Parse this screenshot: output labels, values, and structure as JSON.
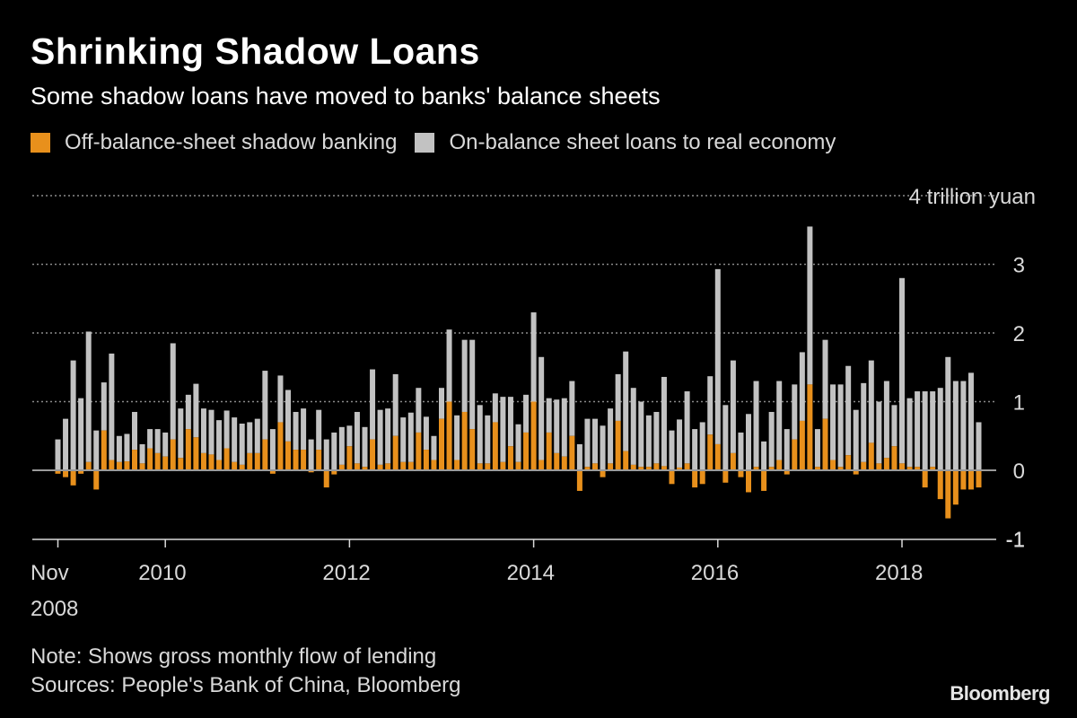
{
  "chart_data": {
    "type": "bar",
    "stacked": true,
    "title": "Shrinking Shadow Loans",
    "subtitle": "Some shadow loans have moved to banks' balance sheets",
    "y_unit_label": "4 trillion yuan",
    "ylim": [
      -1,
      4
    ],
    "y_ticks": [
      -1,
      0,
      1,
      2,
      3,
      4
    ],
    "y_tick_labels": [
      "-1",
      "0",
      "1",
      "2",
      "3"
    ],
    "x_tick_labels": [
      {
        "label": "Nov",
        "sub": "2008",
        "index": 0
      },
      {
        "label": "2010",
        "index": 14
      },
      {
        "label": "2012",
        "index": 38
      },
      {
        "label": "2014",
        "index": 62
      },
      {
        "label": "2016",
        "index": 86
      },
      {
        "label": "2018",
        "index": 110
      }
    ],
    "grid": "horizontal dotted",
    "legend_position": "top-left",
    "colors": {
      "off": "#e8901c",
      "on": "#c2c2c2",
      "grid": "#8a8a8a",
      "zero": "#9a9a9a"
    },
    "series": [
      {
        "name": "Off-balance-sheet shadow banking",
        "values": [
          -0.05,
          -0.1,
          -0.22,
          -0.05,
          0.12,
          -0.28,
          0.58,
          0.15,
          0.12,
          0.13,
          0.3,
          0.1,
          0.32,
          0.25,
          0.2,
          0.45,
          0.18,
          0.6,
          0.48,
          0.25,
          0.23,
          0.15,
          0.32,
          0.12,
          0.08,
          0.25,
          0.25,
          0.45,
          -0.05,
          0.7,
          0.42,
          0.3,
          0.3,
          -0.03,
          0.3,
          -0.25,
          -0.06,
          0.08,
          0.35,
          0.1,
          0.05,
          0.45,
          0.08,
          0.1,
          0.5,
          0.12,
          0.12,
          0.55,
          0.3,
          0.15,
          0.75,
          1.0,
          0.15,
          0.85,
          0.6,
          0.1,
          0.1,
          0.7,
          0.12,
          0.35,
          0.12,
          0.55,
          1.0,
          0.15,
          0.55,
          0.25,
          0.2,
          0.5,
          -0.3,
          0.05,
          0.1,
          -0.1,
          0.1,
          0.72,
          0.28,
          0.08,
          0.05,
          0.05,
          0.1,
          0.06,
          -0.2,
          0.04,
          0.1,
          -0.25,
          -0.2,
          0.52,
          0.38,
          -0.18,
          0.25,
          -0.1,
          -0.32,
          0.05,
          -0.3,
          0.05,
          0.15,
          -0.06,
          0.45,
          0.72,
          1.25,
          0.05,
          0.75,
          0.15,
          0.05,
          0.22,
          -0.06,
          0.12,
          0.4,
          0.1,
          0.18,
          0.35,
          0.1,
          0.05,
          0.05,
          -0.25,
          0.05,
          -0.42,
          -0.7,
          -0.5,
          -0.28,
          -0.28,
          -0.25
        ]
      },
      {
        "name": "On-balance sheet loans to real economy",
        "values": [
          0.45,
          0.75,
          1.6,
          1.05,
          1.9,
          0.58,
          0.7,
          1.55,
          0.38,
          0.4,
          0.55,
          0.28,
          0.28,
          0.35,
          0.35,
          1.4,
          0.72,
          0.5,
          0.78,
          0.65,
          0.65,
          0.58,
          0.55,
          0.65,
          0.6,
          0.45,
          0.5,
          1.0,
          0.6,
          0.68,
          0.75,
          0.55,
          0.6,
          0.45,
          0.58,
          0.45,
          0.55,
          0.55,
          0.3,
          0.75,
          0.58,
          1.02,
          0.8,
          0.8,
          0.9,
          0.65,
          0.72,
          0.65,
          0.48,
          0.35,
          0.45,
          1.05,
          0.65,
          1.05,
          1.3,
          0.85,
          0.7,
          0.42,
          0.95,
          0.72,
          0.55,
          0.55,
          1.3,
          1.5,
          0.5,
          0.78,
          0.85,
          0.8,
          0.38,
          0.7,
          0.65,
          0.65,
          0.8,
          0.68,
          1.45,
          1.12,
          0.95,
          0.75,
          0.75,
          1.3,
          0.58,
          0.7,
          1.05,
          0.6,
          0.7,
          0.85,
          2.55,
          0.95,
          1.35,
          0.55,
          0.82,
          1.25,
          0.42,
          0.8,
          1.15,
          0.6,
          0.8,
          1.0,
          2.3,
          0.55,
          1.15,
          1.1,
          1.2,
          1.3,
          0.88,
          1.15,
          1.2,
          0.9,
          1.12,
          0.6,
          2.7,
          1.0,
          1.1,
          1.15,
          1.1,
          1.2,
          1.65,
          1.3,
          1.3,
          1.42,
          0.7
        ]
      }
    ]
  },
  "legend": {
    "off_label": "Off-balance-sheet shadow banking",
    "on_label": "On-balance sheet loans to real economy"
  },
  "footer": {
    "note": "Note: Shows gross monthly flow of lending",
    "sources": "Sources: People's Bank of China, Bloomberg",
    "brand": "Bloomberg"
  }
}
